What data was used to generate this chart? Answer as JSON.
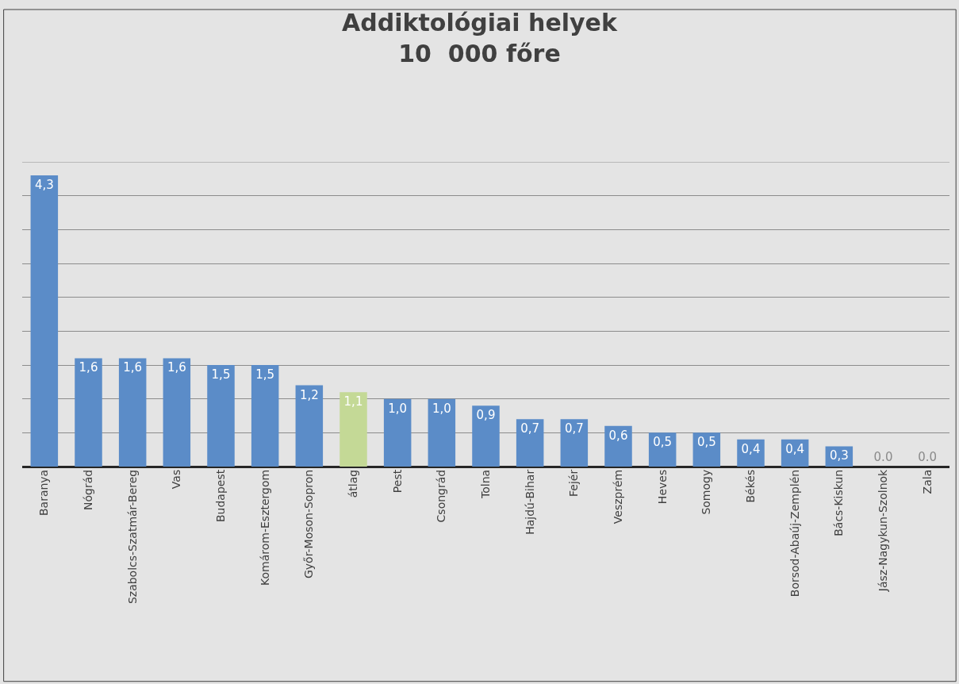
{
  "chart_data": {
    "type": "bar",
    "title": "Addiktológiai helyek\n10  000 főre",
    "categories": [
      "Baranya",
      "Nógrád",
      "Szabolcs-Szatmár-Bereg",
      "Vas",
      "Budapest",
      "Komárom-Esztergom",
      "Győr-Moson-Sopron",
      "átlag",
      "Pest",
      "Csongrád",
      "Tolna",
      "Hajdú-Bihar",
      "Fejér",
      "Veszprém",
      "Heves",
      "Somogy",
      "Békés",
      "Borsod-Abaúj-Zemplén",
      "Bács-Kiskun",
      "Jász-Nagykun-Szolnok",
      "Zala"
    ],
    "values": [
      4.3,
      1.6,
      1.6,
      1.6,
      1.5,
      1.5,
      1.2,
      1.1,
      1.0,
      1.0,
      0.9,
      0.7,
      0.7,
      0.6,
      0.5,
      0.5,
      0.4,
      0.4,
      0.3,
      0.0,
      0.0
    ],
    "value_labels": [
      "4,3",
      "1,6",
      "1,6",
      "1,6",
      "1,5",
      "1,5",
      "1,2",
      "1,1",
      "1,0",
      "1,0",
      "0,9",
      "0,7",
      "0,7",
      "0,6",
      "0,5",
      "0,5",
      "0,4",
      "0,4",
      "0,3",
      "0.0",
      "0.0"
    ],
    "colors": [
      "#5b8cc8",
      "#5b8cc8",
      "#5b8cc8",
      "#5b8cc8",
      "#5b8cc8",
      "#5b8cc8",
      "#5b8cc8",
      "#c4d996",
      "#5b8cc8",
      "#5b8cc8",
      "#5b8cc8",
      "#5b8cc8",
      "#5b8cc8",
      "#5b8cc8",
      "#5b8cc8",
      "#5b8cc8",
      "#5b8cc8",
      "#5b8cc8",
      "#5b8cc8",
      "#5b8cc8",
      "#5b8cc8"
    ],
    "ylim": [
      0,
      4.5
    ],
    "yticks": [
      {
        "value": 0,
        "label": null
      },
      {
        "value": 0.5,
        "label": null
      },
      {
        "value": 1,
        "label": null
      },
      {
        "value": 1.5,
        "label": null
      },
      {
        "value": 2,
        "label": null
      },
      {
        "value": 2.5,
        "label": null
      },
      {
        "value": 3,
        "label": null
      },
      {
        "value": 3.5,
        "label": null
      },
      {
        "value": 4,
        "label": null
      },
      {
        "value": 4.5,
        "label": null
      }
    ],
    "grid": "y",
    "tick_labels": "x",
    "legend": false
  }
}
